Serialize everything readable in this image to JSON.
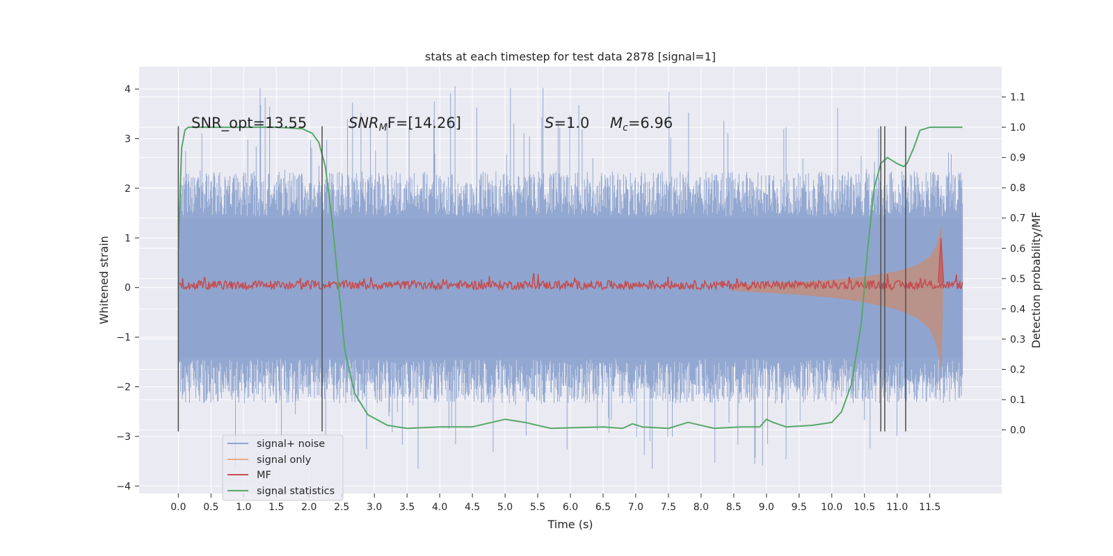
{
  "chart_data": {
    "type": "line",
    "title": "stats at each timestep for test data 2878 [signal=1]",
    "xlabel": "Time (s)",
    "ylabel": "Whitened strain",
    "ylabel_right": "Detection probability/MF",
    "xlim": [
      -0.6,
      12.6
    ],
    "ylim": [
      -4.15,
      4.45
    ],
    "ylim_right": [
      -0.21,
      1.2
    ],
    "x_ticks": [
      "0.0",
      "0.5",
      "1.0",
      "1.5",
      "2.0",
      "2.5",
      "3.0",
      "3.5",
      "4.0",
      "4.5",
      "5.0",
      "5.5",
      "6.0",
      "6.5",
      "7.0",
      "7.5",
      "8.0",
      "8.5",
      "9.0",
      "9.5",
      "10.0",
      "10.5",
      "11.0",
      "11.5"
    ],
    "y_ticks": [
      "4",
      "3",
      "2",
      "1",
      "0",
      "−1",
      "−2",
      "−3",
      "−4"
    ],
    "y_right_ticks": [
      "1.1",
      "1.0",
      "0.9",
      "0.8",
      "0.7",
      "0.6",
      "0.5",
      "0.4",
      "0.3",
      "0.2",
      "0.1",
      "0.0"
    ],
    "grid": true,
    "legend_position": "lower-left",
    "annotations": {
      "snr_opt": "SNR_opt=13.55",
      "snr_mf_base": "SNR",
      "snr_mf_sub": "M",
      "snr_mf_rest": "F=[14.26]",
      "s_var": "S",
      "s_rest": "=1.0",
      "mc_var": "M",
      "mc_sub": "c",
      "mc_rest": "=6.96"
    },
    "vertical_lines": [
      {
        "x": 0.0,
        "y_range": [
          -2.9,
          3.25
        ]
      },
      {
        "x": 2.2,
        "y_range": [
          -2.9,
          3.25
        ]
      },
      {
        "x": 10.75,
        "y_range": [
          -2.9,
          3.25
        ]
      },
      {
        "x": 10.81,
        "y_range": [
          -2.9,
          3.25
        ]
      },
      {
        "x": 11.13,
        "y_range": [
          -2.9,
          3.25
        ]
      }
    ],
    "series": [
      {
        "name": "signal+ noise",
        "color": "#8ea4cf",
        "axis": "left",
        "x_range": [
          0.0,
          12.0
        ],
        "envelope_low": -2.0,
        "envelope_high": 2.0,
        "spike_low": -3.7,
        "spike_high": 4.1
      },
      {
        "name": "signal only",
        "color": "#dd8452",
        "axis": "left",
        "x": [
          8.5,
          9.0,
          9.5,
          10.0,
          10.5,
          11.0,
          11.3,
          11.5,
          11.6,
          11.65,
          11.68,
          11.7
        ],
        "amplitude": [
          0.05,
          0.08,
          0.11,
          0.15,
          0.22,
          0.33,
          0.45,
          0.62,
          0.85,
          1.1,
          1.3,
          0.3
        ]
      },
      {
        "name": "MF",
        "color": "#c44e52",
        "axis": "left",
        "x_range": [
          0.0,
          12.0
        ],
        "baseline": 0.05,
        "peak": {
          "x": 11.67,
          "y": 1.0
        }
      },
      {
        "name": "signal statistics",
        "color": "#55a868",
        "axis": "right",
        "x": [
          0.0,
          0.05,
          0.1,
          0.15,
          0.3,
          0.5,
          1.0,
          1.5,
          1.9,
          2.05,
          2.15,
          2.25,
          2.35,
          2.45,
          2.55,
          2.7,
          2.9,
          3.2,
          3.5,
          4.0,
          4.5,
          4.7,
          5.0,
          5.3,
          5.7,
          6.0,
          6.5,
          6.8,
          6.95,
          7.1,
          7.5,
          7.8,
          8.2,
          8.6,
          8.9,
          9.0,
          9.1,
          9.3,
          9.7,
          10.0,
          10.15,
          10.3,
          10.45,
          10.55,
          10.65,
          10.75,
          10.85,
          11.0,
          11.1,
          11.15,
          11.25,
          11.35,
          11.5,
          11.7,
          11.9,
          12.0
        ],
        "y": [
          0.6,
          0.93,
          0.99,
          1.0,
          1.0,
          1.0,
          1.0,
          1.0,
          0.995,
          0.98,
          0.95,
          0.87,
          0.7,
          0.48,
          0.26,
          0.12,
          0.05,
          0.015,
          0.005,
          0.01,
          0.01,
          0.02,
          0.035,
          0.025,
          0.005,
          0.007,
          0.01,
          0.005,
          0.02,
          0.01,
          0.005,
          0.025,
          0.005,
          0.01,
          0.01,
          0.035,
          0.025,
          0.01,
          0.015,
          0.025,
          0.06,
          0.15,
          0.35,
          0.6,
          0.8,
          0.88,
          0.9,
          0.88,
          0.87,
          0.88,
          0.93,
          0.99,
          1.0,
          1.0,
          1.0,
          1.0
        ]
      }
    ]
  }
}
